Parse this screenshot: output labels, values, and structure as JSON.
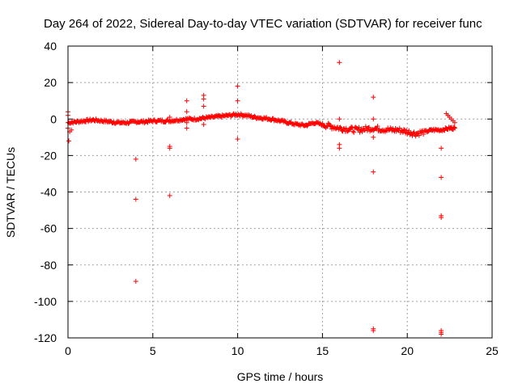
{
  "chart_data": {
    "type": "scatter",
    "title": "Day 264 of 2022, Sidereal Day-to-day VTEC variation (SDTVAR) for receiver func",
    "xlabel": "GPS time / hours",
    "ylabel": "SDTVAR / TECUs",
    "xlim": [
      0,
      25
    ],
    "ylim": [
      -120,
      40
    ],
    "xticks": [
      0,
      5,
      10,
      15,
      20,
      25
    ],
    "yticks": [
      -120,
      -100,
      -80,
      -60,
      -40,
      -20,
      0,
      20,
      40
    ],
    "grid": true,
    "marker": "+",
    "color": "#ff0000",
    "trend": [
      [
        0,
        -2
      ],
      [
        0.5,
        -1.5
      ],
      [
        1,
        -1
      ],
      [
        1.5,
        -0.5
      ],
      [
        2,
        -1
      ],
      [
        2.5,
        -1.5
      ],
      [
        3,
        -2
      ],
      [
        3.5,
        -2
      ],
      [
        4,
        -1.5
      ],
      [
        4.5,
        -1.5
      ],
      [
        5,
        -1
      ],
      [
        5.5,
        -1
      ],
      [
        6,
        -1
      ],
      [
        6.5,
        -0.5
      ],
      [
        7,
        0
      ],
      [
        7.5,
        0
      ],
      [
        8,
        0.5
      ],
      [
        8.5,
        1
      ],
      [
        9,
        1.5
      ],
      [
        9.5,
        2
      ],
      [
        10,
        2.5
      ],
      [
        10.5,
        2
      ],
      [
        11,
        1
      ],
      [
        11.5,
        0.5
      ],
      [
        12,
        0
      ],
      [
        12.5,
        -1
      ],
      [
        13,
        -2
      ],
      [
        13.5,
        -3
      ],
      [
        14,
        -3.5
      ],
      [
        14.5,
        -2
      ],
      [
        15,
        -3
      ],
      [
        15.5,
        -4
      ],
      [
        16,
        -5
      ],
      [
        16.5,
        -5.5
      ],
      [
        17,
        -6
      ],
      [
        17.5,
        -5.5
      ],
      [
        18,
        -5
      ],
      [
        18.5,
        -5.5
      ],
      [
        19,
        -6
      ],
      [
        19.5,
        -6
      ],
      [
        20,
        -7
      ],
      [
        20.5,
        -8
      ],
      [
        21,
        -7
      ],
      [
        21.5,
        -6
      ],
      [
        22,
        -6
      ],
      [
        22.5,
        -5
      ],
      [
        22.8,
        -5
      ]
    ],
    "outliers": [
      [
        0,
        4
      ],
      [
        0,
        2
      ],
      [
        0,
        -5
      ],
      [
        0.1,
        -7
      ],
      [
        0.2,
        -6
      ],
      [
        0.05,
        -12
      ],
      [
        4,
        -22
      ],
      [
        4,
        -44
      ],
      [
        4,
        -89
      ],
      [
        6,
        -15
      ],
      [
        6,
        -16
      ],
      [
        6,
        -42
      ],
      [
        6,
        1
      ],
      [
        7,
        10
      ],
      [
        7,
        4
      ],
      [
        7,
        -2
      ],
      [
        7,
        -5
      ],
      [
        8,
        13
      ],
      [
        8,
        11
      ],
      [
        8,
        7
      ],
      [
        8,
        -3
      ],
      [
        10,
        18
      ],
      [
        10,
        10
      ],
      [
        10,
        -11
      ],
      [
        16,
        31
      ],
      [
        16,
        -14
      ],
      [
        16,
        -16
      ],
      [
        16,
        0
      ],
      [
        18,
        12
      ],
      [
        18,
        -29
      ],
      [
        18,
        -115
      ],
      [
        18,
        -116
      ],
      [
        18,
        -10
      ],
      [
        18,
        0
      ],
      [
        22,
        -16
      ],
      [
        22,
        -32
      ],
      [
        22,
        -53
      ],
      [
        22,
        -54
      ],
      [
        22,
        -116
      ],
      [
        22,
        -117
      ],
      [
        22,
        -118
      ],
      [
        22.3,
        3
      ],
      [
        22.4,
        2
      ],
      [
        22.5,
        1
      ],
      [
        22.6,
        0
      ],
      [
        22.7,
        -1
      ],
      [
        22.8,
        -2
      ]
    ]
  }
}
